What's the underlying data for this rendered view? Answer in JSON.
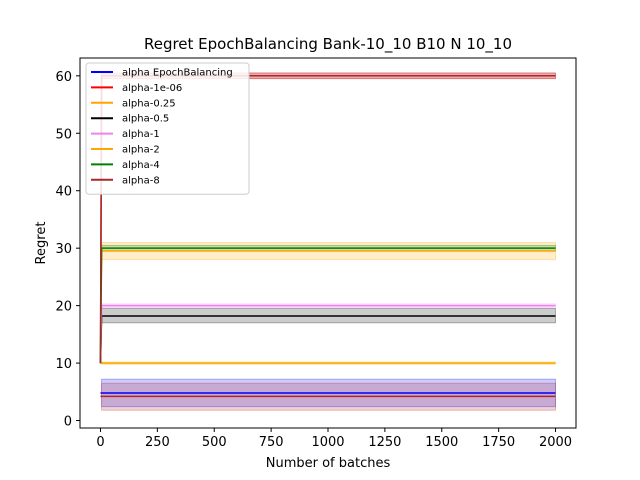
{
  "chart_data": {
    "type": "line",
    "title": "Regret EpochBalancing Bank-10_10 B10 N 10_10",
    "xlabel": "Number of batches",
    "ylabel": "Regret",
    "xlim": [
      -90,
      2090
    ],
    "ylim": [
      -1.3,
      63.1
    ],
    "xticks": [
      0,
      250,
      500,
      750,
      1000,
      1250,
      1500,
      1750,
      2000
    ],
    "yticks": [
      0,
      10,
      20,
      30,
      40,
      50,
      60
    ],
    "grid": false,
    "legend_position": "top-left",
    "series": [
      {
        "name": "alpha EpochBalancing",
        "color": "#0000ff",
        "x": [
          0,
          5,
          2000
        ],
        "y": [
          4.8,
          4.8,
          4.8
        ],
        "band": [
          2.4,
          7.2
        ]
      },
      {
        "name": "alpha-1e-06",
        "color": "#ff0000",
        "x": [
          0,
          5,
          2000
        ],
        "y": [
          10,
          60,
          60
        ],
        "band": [
          59.5,
          60.5
        ]
      },
      {
        "name": "alpha-0.25",
        "color": "#ffa500",
        "x": [
          0,
          5,
          2000
        ],
        "y": [
          10,
          29.5,
          29.5
        ],
        "band": [
          28,
          31
        ]
      },
      {
        "name": "alpha-0.5",
        "color": "#000000",
        "x": [
          0,
          5,
          2000
        ],
        "y": [
          10,
          18.2,
          18.2
        ],
        "band": [
          17,
          19.5
        ]
      },
      {
        "name": "alpha-1",
        "color": "#ee82ee",
        "x": [
          0,
          5,
          2000
        ],
        "y": [
          10,
          20,
          20
        ],
        "band": [
          19.7,
          20.3
        ]
      },
      {
        "name": "alpha-2",
        "color": "#ffa500",
        "x": [
          0,
          5,
          2000
        ],
        "y": [
          10,
          10,
          10
        ],
        "band": [
          9.8,
          10.2
        ]
      },
      {
        "name": "alpha-4",
        "color": "#008000",
        "x": [
          0,
          5,
          2000
        ],
        "y": [
          10,
          30,
          30
        ],
        "band": [
          29.5,
          30.5
        ]
      },
      {
        "name": "alpha-8",
        "color": "#a52a2a",
        "x": [
          0,
          5,
          2000
        ],
        "y": [
          10,
          60,
          60
        ],
        "band": [
          59.5,
          60.5
        ]
      },
      {
        "name": "",
        "color": "#b22222",
        "x": [
          0,
          5,
          2000
        ],
        "y": [
          4.2,
          4.2,
          4.2
        ],
        "band": [
          1.8,
          6.5
        ]
      }
    ]
  }
}
